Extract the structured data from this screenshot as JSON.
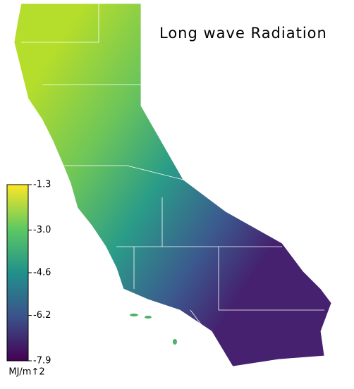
{
  "title": "Long wave Radiation",
  "colorbar": {
    "lim": [
      -7.9,
      -1.3
    ],
    "ticks": [
      -1.3,
      {
        "value": -3,
        "label": "-3.0"
      },
      -4.6,
      -6.2,
      -7.9
    ],
    "unit": "MJ/m↑2",
    "colors": [
      "#440154",
      "#3b528b",
      "#21918c",
      "#5ec962",
      "#fde725"
    ]
  }
}
